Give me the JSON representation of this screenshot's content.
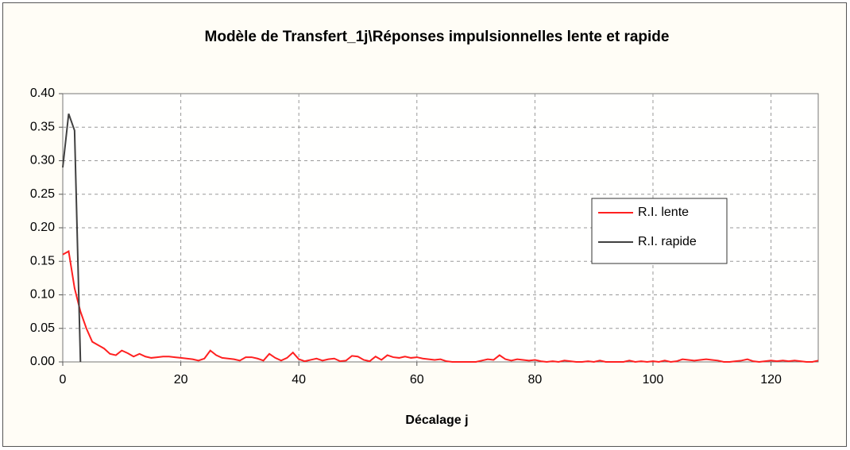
{
  "chart_data": {
    "type": "line",
    "title": "Modèle de Transfert_1j\\Réponses impulsionnelles lente et rapide",
    "x_label": "Décalage j",
    "xlim": [
      0,
      128
    ],
    "xticks": [
      0,
      20,
      40,
      60,
      80,
      100,
      120
    ],
    "ylim": [
      0,
      0.4
    ],
    "yticks": [
      {
        "value": 0,
        "label": "0.00"
      },
      {
        "value": 0.05,
        "label": "0.05"
      },
      {
        "value": 0.1,
        "label": "0.10"
      },
      {
        "value": 0.15,
        "label": "0.15"
      },
      {
        "value": 0.2,
        "label": "0.20"
      },
      {
        "value": 0.25,
        "label": "0.25"
      },
      {
        "value": 0.3,
        "label": "0.30"
      },
      {
        "value": 0.35,
        "label": "0.35"
      },
      {
        "value": 0.4,
        "label": "0.40"
      }
    ],
    "grid": true,
    "legend": "right",
    "series": [
      {
        "name": "R.I. lente",
        "color": "#ff2020",
        "x": [
          0,
          1,
          2,
          3,
          4,
          5,
          6,
          7,
          8,
          9,
          10,
          11,
          12,
          13,
          14,
          15,
          16,
          17,
          18,
          19,
          20,
          21,
          22,
          23,
          24,
          25,
          26,
          27,
          28,
          29,
          30,
          31,
          32,
          33,
          34,
          35,
          36,
          37,
          38,
          39,
          40,
          41,
          42,
          43,
          44,
          45,
          46,
          47,
          48,
          49,
          50,
          51,
          52,
          53,
          54,
          55,
          56,
          57,
          58,
          59,
          60,
          61,
          62,
          63,
          64,
          65,
          66,
          67,
          68,
          69,
          70,
          71,
          72,
          73,
          74,
          75,
          76,
          77,
          78,
          79,
          80,
          81,
          82,
          83,
          84,
          85,
          86,
          87,
          88,
          89,
          90,
          91,
          92,
          93,
          94,
          95,
          96,
          97,
          98,
          99,
          100,
          101,
          102,
          103,
          104,
          105,
          106,
          107,
          108,
          109,
          110,
          111,
          112,
          113,
          114,
          115,
          116,
          117,
          118,
          119,
          120,
          121,
          122,
          123,
          124,
          125,
          126,
          127,
          128
        ],
        "values": [
          0.16,
          0.165,
          0.11,
          0.075,
          0.05,
          0.03,
          0.025,
          0.02,
          0.012,
          0.01,
          0.017,
          0.013,
          0.008,
          0.012,
          0.008,
          0.006,
          0.007,
          0.008,
          0.008,
          0.007,
          0.006,
          0.005,
          0.004,
          0.002,
          0.005,
          0.017,
          0.01,
          0.006,
          0.005,
          0.004,
          0.002,
          0.007,
          0.007,
          0.005,
          0.002,
          0.012,
          0.006,
          0.002,
          0.006,
          0.014,
          0.004,
          0.001,
          0.003,
          0.005,
          0.002,
          0.004,
          0.005,
          0.001,
          0.002,
          0.009,
          0.008,
          0.003,
          0.001,
          0.008,
          0.003,
          0.01,
          0.007,
          0.006,
          0.008,
          0.006,
          0.007,
          0.005,
          0.004,
          0.003,
          0.004,
          0.001,
          0,
          0,
          0,
          0,
          0,
          0.002,
          0.004,
          0.003,
          0.01,
          0.004,
          0.002,
          0.004,
          0.003,
          0.002,
          0.003,
          0.001,
          0,
          0.001,
          0,
          0.002,
          0.001,
          0,
          0,
          0.001,
          0,
          0.002,
          0,
          0,
          0,
          0,
          0.002,
          0,
          0.001,
          0,
          0.001,
          0,
          0.002,
          0,
          0.001,
          0.004,
          0.003,
          0.002,
          0.003,
          0.004,
          0.003,
          0.002,
          0,
          0,
          0.001,
          0.002,
          0.004,
          0.001,
          0,
          0.001,
          0.002,
          0.001,
          0.002,
          0.001,
          0.002,
          0.001,
          0,
          0,
          0.002
        ]
      },
      {
        "name": "R.I. rapide",
        "color": "#404040",
        "x": [
          0,
          1,
          2,
          3
        ],
        "values": [
          0.29,
          0.37,
          0.345,
          0
        ]
      }
    ]
  }
}
